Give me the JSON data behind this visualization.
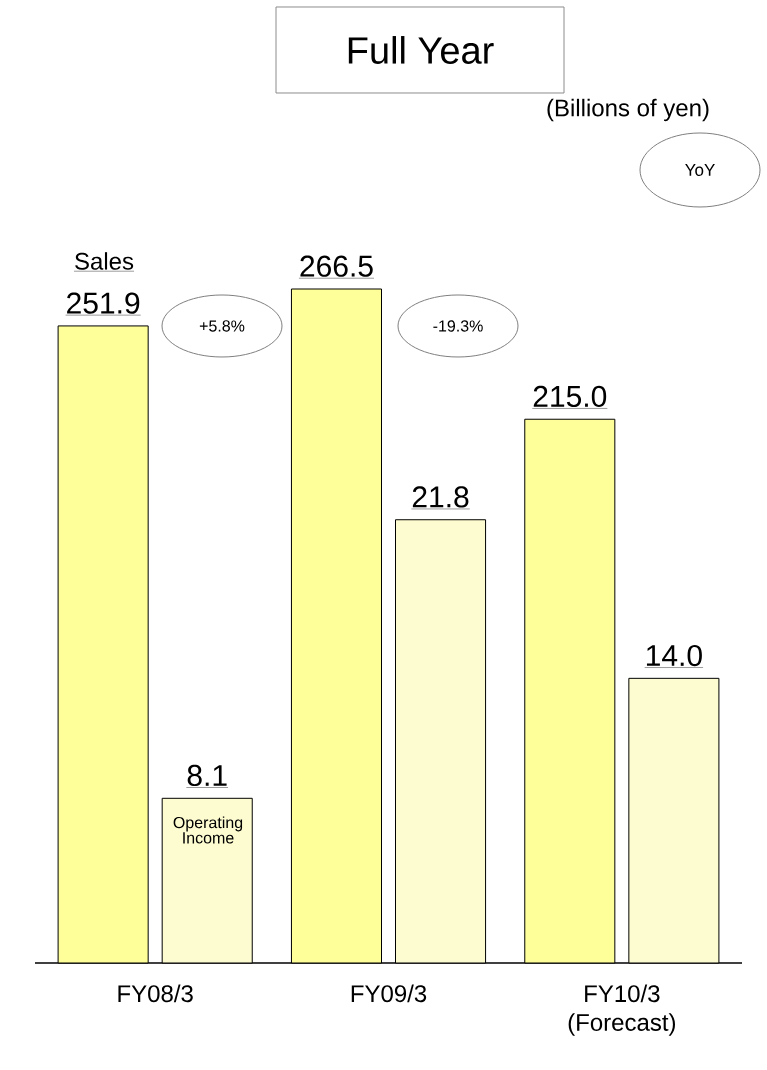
{
  "chart_data": {
    "type": "bar",
    "title": "Full Year",
    "categories": [
      "FY08/3",
      "FY09/3",
      "FY10/3 (Forecast)"
    ],
    "series": [
      {
        "name": "Sales",
        "color": "#ffff99",
        "values": [
          251.9,
          266.5,
          215.0
        ],
        "value_labels": [
          "251.9",
          "266.5",
          "215.0"
        ]
      },
      {
        "name": "Operating Income",
        "color": "#fdfcd0",
        "axis": "y2",
        "values": [
          8.1,
          21.8,
          14.0
        ],
        "value_labels": [
          "8.1",
          "21.8",
          "14.0"
        ]
      }
    ],
    "tick_labels": "x",
    "annotations": [
      "YoY",
      "+5.8%",
      "-19.3%",
      "(Billions of yen)"
    ]
  }
}
